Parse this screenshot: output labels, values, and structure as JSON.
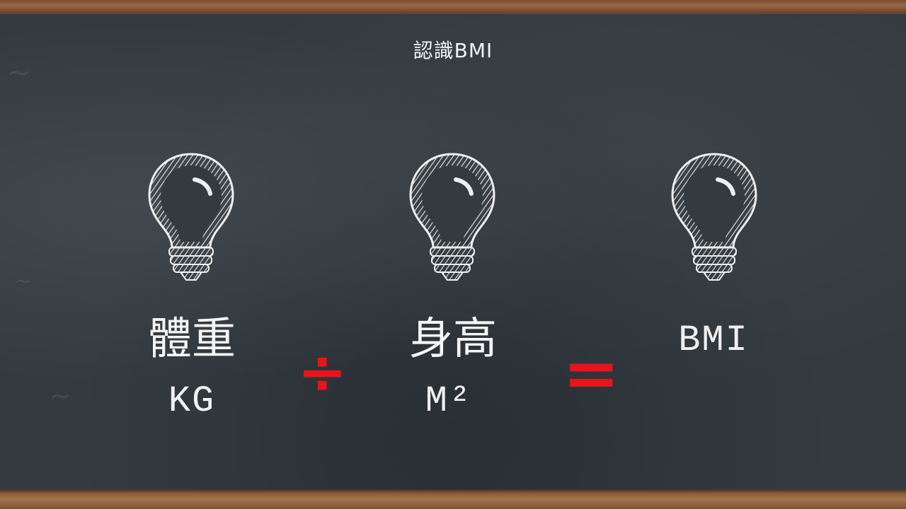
{
  "slide": {
    "title": "認識BMI"
  },
  "formula": {
    "weight_label": "體重",
    "weight_unit": "KG",
    "divide_symbol": "÷",
    "height_label": "身高",
    "height_unit": "M²",
    "equals_symbol": "=",
    "result_label": "BMI"
  },
  "icons": [
    "lightbulb-icon",
    "lightbulb-icon",
    "lightbulb-icon"
  ],
  "colors": {
    "board": "#333b41",
    "chalk": "#f2f2f2",
    "operator": "#e8141c",
    "frame": "#7a4f33"
  }
}
